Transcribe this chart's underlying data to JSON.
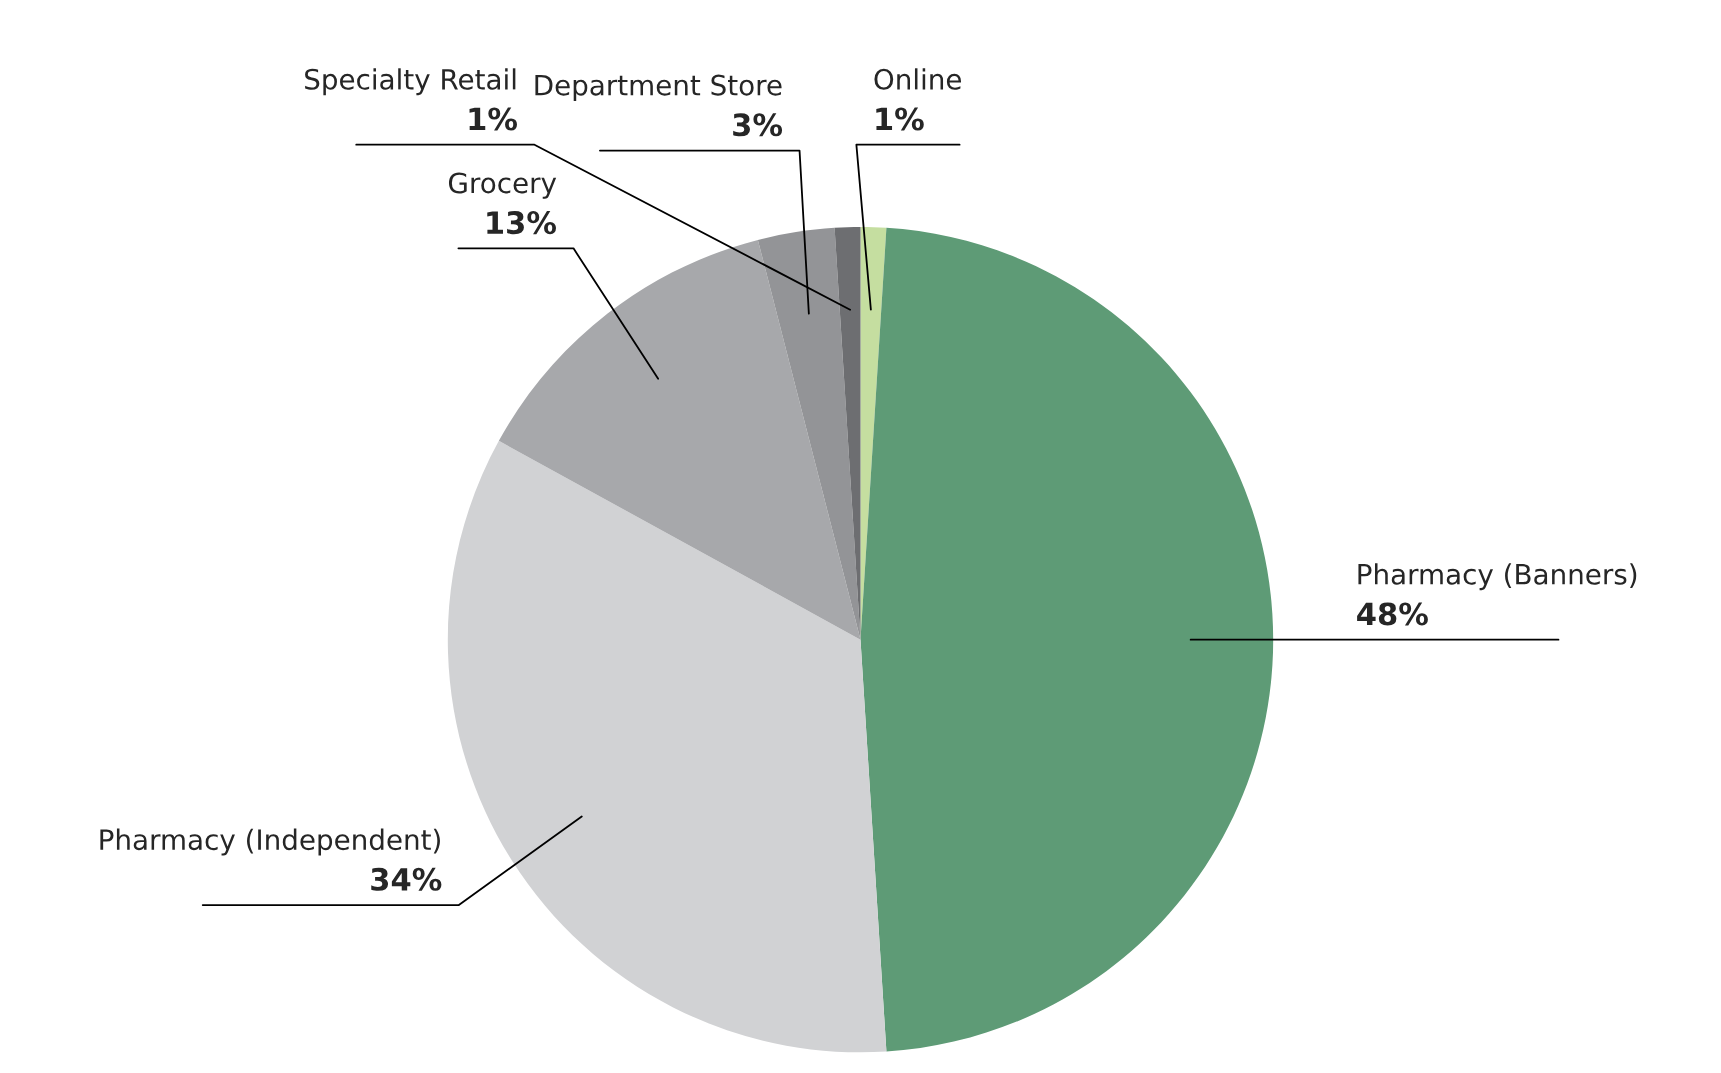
{
  "chart_data": {
    "type": "pie",
    "categories": [
      "Online",
      "Pharmacy (Banners)",
      "Pharmacy (Independent)",
      "Grocery",
      "Department Store",
      "Specialty Retail"
    ],
    "values": [
      1,
      48,
      34,
      13,
      3,
      1
    ],
    "colors": [
      "#c5dea0",
      "#5e9b76",
      "#d1d2d4",
      "#a7a8ab",
      "#939497",
      "#6d6e71"
    ],
    "value_labels": [
      "1%",
      "48%",
      "34%",
      "13%",
      "3%",
      "1%"
    ]
  }
}
